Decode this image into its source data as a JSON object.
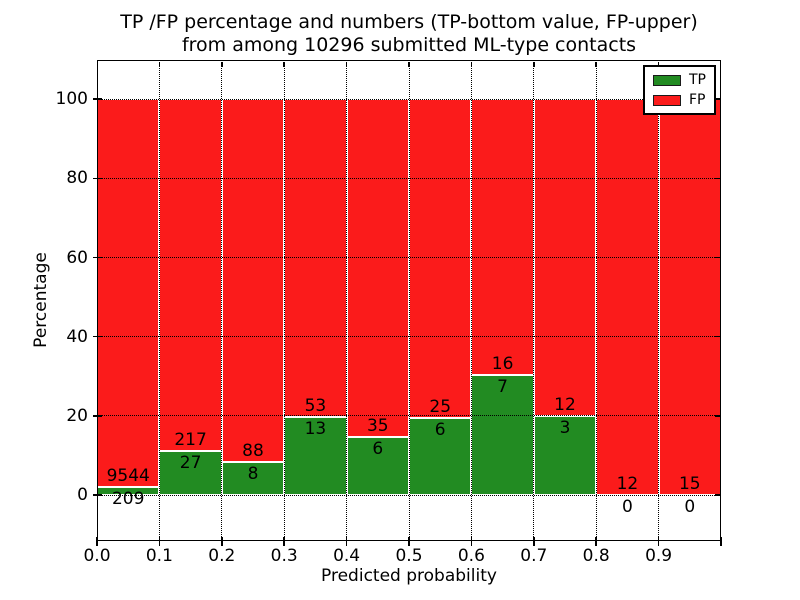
{
  "chart_data": {
    "type": "bar",
    "stacked": true,
    "title_line1": "TP /FP percentage and numbers (TP-bottom value, FP-upper)",
    "title_line2": "from among 10296 submitted ML-type contacts",
    "xlabel": "Predicted probability",
    "ylabel": "Percentage",
    "x_tick_labels": [
      "0.0",
      "0.1",
      "0.2",
      "0.3",
      "0.4",
      "0.5",
      "0.6",
      "0.7",
      "0.8",
      "0.9"
    ],
    "y_tick_values": [
      0,
      20,
      40,
      60,
      80,
      100
    ],
    "xlim": [
      0.0,
      1.0
    ],
    "ylim": [
      -11.6,
      109.9
    ],
    "bin_width": 0.1,
    "grid": {
      "style": "dotted",
      "color": "#000000"
    },
    "categories": [
      "0.0-0.1",
      "0.1-0.2",
      "0.2-0.3",
      "0.3-0.4",
      "0.4-0.5",
      "0.5-0.6",
      "0.6-0.7",
      "0.7-0.8",
      "0.8-0.9",
      "0.9-1.0"
    ],
    "series": [
      {
        "name": "TP",
        "color": "#228b22",
        "counts": [
          209,
          27,
          8,
          13,
          6,
          6,
          7,
          3,
          0,
          0
        ]
      },
      {
        "name": "FP",
        "color": "#fb1b1b",
        "counts": [
          9544,
          217,
          88,
          53,
          35,
          25,
          16,
          12,
          12,
          15
        ]
      }
    ],
    "tp_percent": [
      2.14,
      11.07,
      8.33,
      19.7,
      14.63,
      19.35,
      30.43,
      20.0,
      0.0,
      0.0
    ],
    "bar_edge_color": "#ffffff",
    "legend": {
      "position": "upper right",
      "entries": [
        {
          "label": "TP",
          "color": "#228b22"
        },
        {
          "label": "FP",
          "color": "#fb1b1b"
        }
      ]
    }
  }
}
